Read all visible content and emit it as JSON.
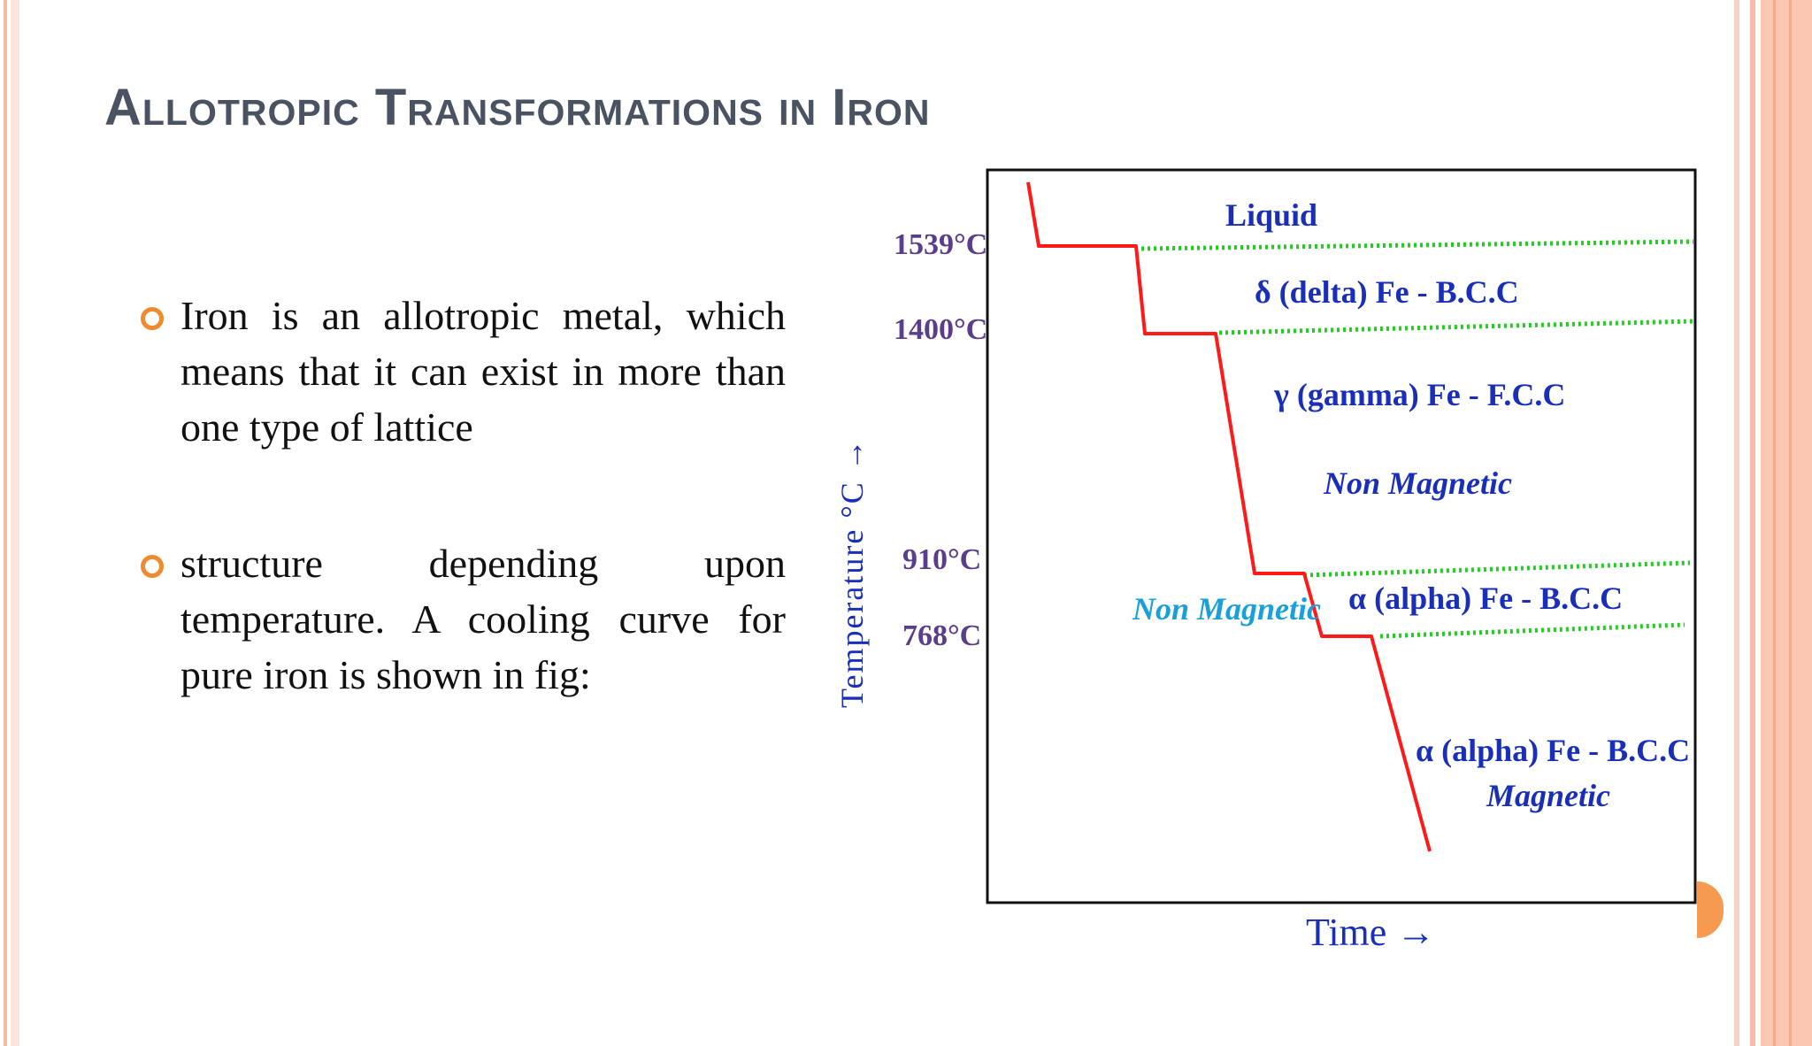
{
  "title": "Allotropic Transformations in Iron",
  "bullets": [
    "Iron is an allotropic metal, which means that it can exist in more than one type of lattice",
    "structure depending upon temperature. A cooling curve for pure iron is shown in fig:"
  ],
  "diagram": {
    "y_axis_label": "Temperature °C →",
    "x_axis_label": "Time →",
    "temperatures": [
      "1539°C",
      "1400°C",
      "910°C",
      "768°C"
    ],
    "regions": {
      "liquid": "Liquid",
      "delta": "δ (delta) Fe - B.C.C",
      "gamma": "γ (gamma) Fe - F.C.C",
      "gamma_magnetism": "Non Magnetic",
      "alpha_non_magnetic_note": "Non Magnetic",
      "alpha_upper": "α (alpha) Fe - B.C.C",
      "alpha_lower": "α (alpha) Fe - B.C.C",
      "alpha_magnetism": "Magnetic"
    },
    "colors": {
      "curve": "#ff1a1a",
      "dotted_lines": "#22cc22",
      "region_labels": "#1a2fb8",
      "temperature_labels": "#5a3d8c",
      "non_magnetic_note": "#1aa0d8",
      "axis_labels": "#1a2fb8"
    }
  },
  "colors": {
    "title": "#4a5361",
    "bullet_marker": "#f08a2e",
    "border": "#f7b9a4"
  }
}
